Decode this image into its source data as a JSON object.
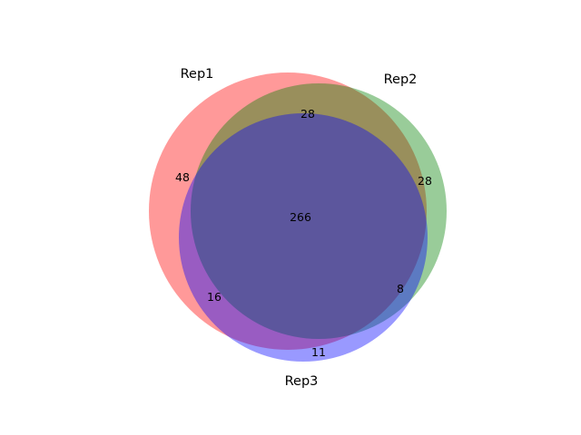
{
  "sets": [
    {
      "name": "Rep1",
      "color": "#ff0000"
    },
    {
      "name": "Rep2",
      "color": "#008000"
    },
    {
      "name": "Rep3",
      "color": "#0000ff"
    }
  ],
  "region_counts": {
    "only_rep1": "48",
    "only_rep2": "28",
    "only_rep3": "11",
    "rep1_rep2": "28",
    "rep1_rep3": "16",
    "rep2_rep3": "8",
    "all_three": "266"
  }
}
